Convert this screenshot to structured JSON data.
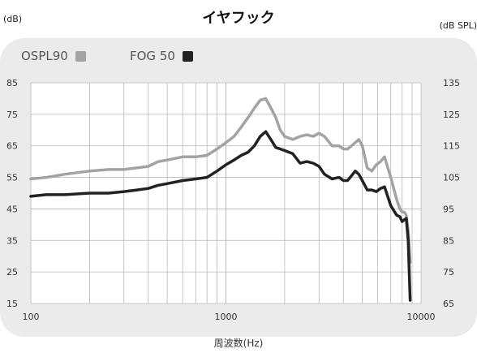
{
  "header": {
    "title": "イヤフック",
    "left_unit": "(dB)",
    "right_unit": "(dB SPL)"
  },
  "chart_data": {
    "type": "line",
    "title": "イヤフック",
    "xlabel": "周波数(Hz)",
    "ylabel_left": "(dB)",
    "ylabel_right": "(dB SPL)",
    "x_scale": "log",
    "xlim": [
      100,
      10000
    ],
    "ylim_left": [
      15,
      85
    ],
    "ylim_right": [
      65,
      135
    ],
    "x_ticks": [
      "100",
      "1000",
      "10000"
    ],
    "y_ticks_left": [
      "85",
      "75",
      "65",
      "55",
      "45",
      "35",
      "25",
      "15"
    ],
    "y_ticks_right": [
      "135",
      "125",
      "115",
      "105",
      "95",
      "85",
      "75",
      "65"
    ],
    "grid": true,
    "legend_position": "top-left",
    "series": [
      {
        "name": "OSPL90",
        "axis": "right",
        "color": "#a3a3a3",
        "x": [
          100,
          120,
          150,
          200,
          250,
          300,
          350,
          400,
          450,
          500,
          600,
          700,
          800,
          900,
          1000,
          1100,
          1200,
          1300,
          1400,
          1500,
          1600,
          1700,
          1800,
          1900,
          2000,
          2200,
          2400,
          2600,
          2800,
          3000,
          3200,
          3500,
          3800,
          4000,
          4200,
          4400,
          4600,
          4800,
          5000,
          5300,
          5600,
          5900,
          6200,
          6500,
          7000,
          7500,
          7800,
          8000,
          8200,
          8400,
          8600,
          8800
        ],
        "values": [
          104.5,
          105,
          106,
          107,
          107.5,
          107.5,
          108,
          108.5,
          110,
          110.5,
          111.5,
          111.5,
          112,
          114,
          116,
          118,
          121,
          124,
          127,
          129.5,
          130,
          127,
          124,
          120,
          118,
          117,
          118,
          118.5,
          118,
          119,
          118,
          115,
          115,
          114,
          114,
          115,
          116,
          117,
          115,
          108,
          107,
          109,
          110,
          111.5,
          105,
          98,
          95,
          94,
          94,
          93,
          88,
          78
        ]
      },
      {
        "name": "FOG 50",
        "axis": "left",
        "color": "#222222",
        "x": [
          100,
          120,
          150,
          200,
          250,
          300,
          350,
          400,
          450,
          500,
          600,
          700,
          800,
          900,
          1000,
          1100,
          1200,
          1300,
          1400,
          1500,
          1600,
          1700,
          1800,
          1900,
          2000,
          2200,
          2400,
          2600,
          2800,
          3000,
          3200,
          3500,
          3800,
          4000,
          4200,
          4400,
          4600,
          4800,
          5000,
          5300,
          5600,
          5900,
          6200,
          6500,
          7000,
          7500,
          7800,
          8000,
          8200,
          8400,
          8600,
          8800
        ],
        "values": [
          49,
          49.5,
          49.5,
          50,
          50,
          50.5,
          51,
          51.5,
          52.5,
          53,
          54,
          54.5,
          55,
          57,
          59,
          60.5,
          62,
          63,
          65,
          68,
          69.5,
          67,
          64.5,
          64,
          63.5,
          62.5,
          59.5,
          60,
          59.5,
          58.5,
          56,
          54.5,
          55,
          54,
          54,
          55.5,
          57,
          56,
          54,
          51,
          51,
          50.5,
          51.5,
          52,
          46,
          43,
          42.5,
          41,
          41.5,
          42,
          35,
          16
        ]
      }
    ]
  }
}
